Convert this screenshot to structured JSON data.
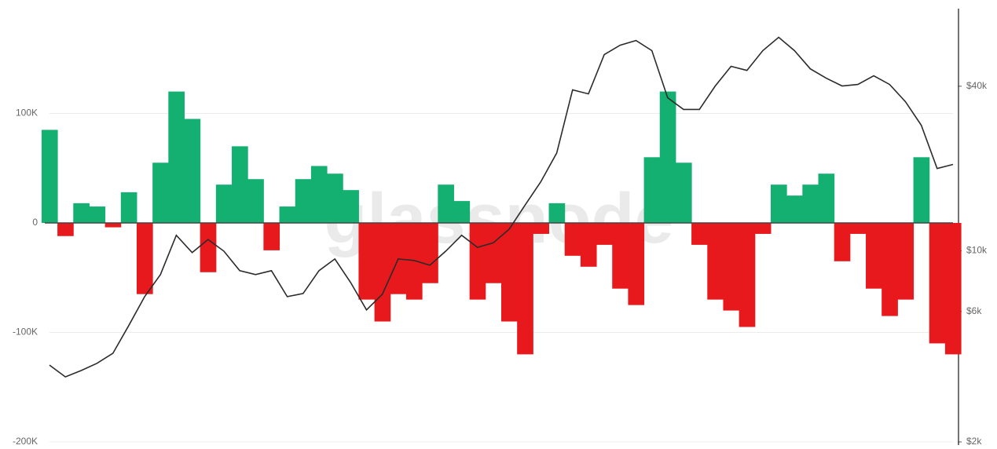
{
  "chart_data": {
    "type": "bar-line",
    "watermark": "glassnode",
    "ylim": [
      -200000,
      200000
    ],
    "yticks": [
      {
        "value": -200000,
        "label": "-200K"
      },
      {
        "value": -100000,
        "label": "-100K"
      },
      0,
      {
        "value": 100000,
        "label": "100K"
      }
    ],
    "y2lim": [
      2000,
      80000
    ],
    "y2log": true,
    "y2ticks": [
      {
        "value": 2000,
        "label": "$2k"
      },
      {
        "value": 6000,
        "label": "$6k"
      },
      {
        "value": 10000,
        "label": "$10k"
      },
      {
        "value": 40000,
        "label": "$40k"
      }
    ],
    "grid": true,
    "series": [
      {
        "kind": "bar",
        "positive_color": "#14b071",
        "negative_color": "#e8191c",
        "values": [
          85000,
          -12000,
          18000,
          15000,
          -4000,
          28000,
          -65000,
          55000,
          120000,
          95000,
          -45000,
          35000,
          70000,
          40000,
          -25000,
          15000,
          40000,
          52000,
          45000,
          30000,
          -70000,
          -90000,
          -65000,
          -70000,
          -55000,
          35000,
          20000,
          -70000,
          -55000,
          -90000,
          -120000,
          -10000,
          18000,
          -30000,
          -40000,
          -20000,
          -60000,
          -75000,
          60000,
          120000,
          55000,
          -20000,
          -70000,
          -80000,
          -95000,
          -10000,
          35000,
          25000,
          35000,
          45000,
          -35000,
          -10000,
          -60000,
          -85000,
          -70000,
          60000,
          -110000,
          -120000
        ]
      },
      {
        "kind": "line",
        "axis": "y2",
        "color": "#2b2b2b",
        "values": [
          3820,
          3460,
          3650,
          3880,
          4220,
          5330,
          6800,
          8190,
          11400,
          9850,
          11000,
          9980,
          8460,
          8190,
          8460,
          6800,
          6980,
          8460,
          9340,
          7660,
          6080,
          6940,
          9340,
          9220,
          8860,
          9980,
          11400,
          10300,
          10700,
          12000,
          14700,
          17900,
          22800,
          38800,
          37500,
          52200,
          56500,
          58800,
          54000,
          36300,
          32900,
          32900,
          40100,
          47300,
          45700,
          54000,
          60400,
          54000,
          46300,
          42800,
          40100,
          40600,
          43700,
          40600,
          35100,
          28800,
          20000,
          20700
        ]
      }
    ]
  }
}
